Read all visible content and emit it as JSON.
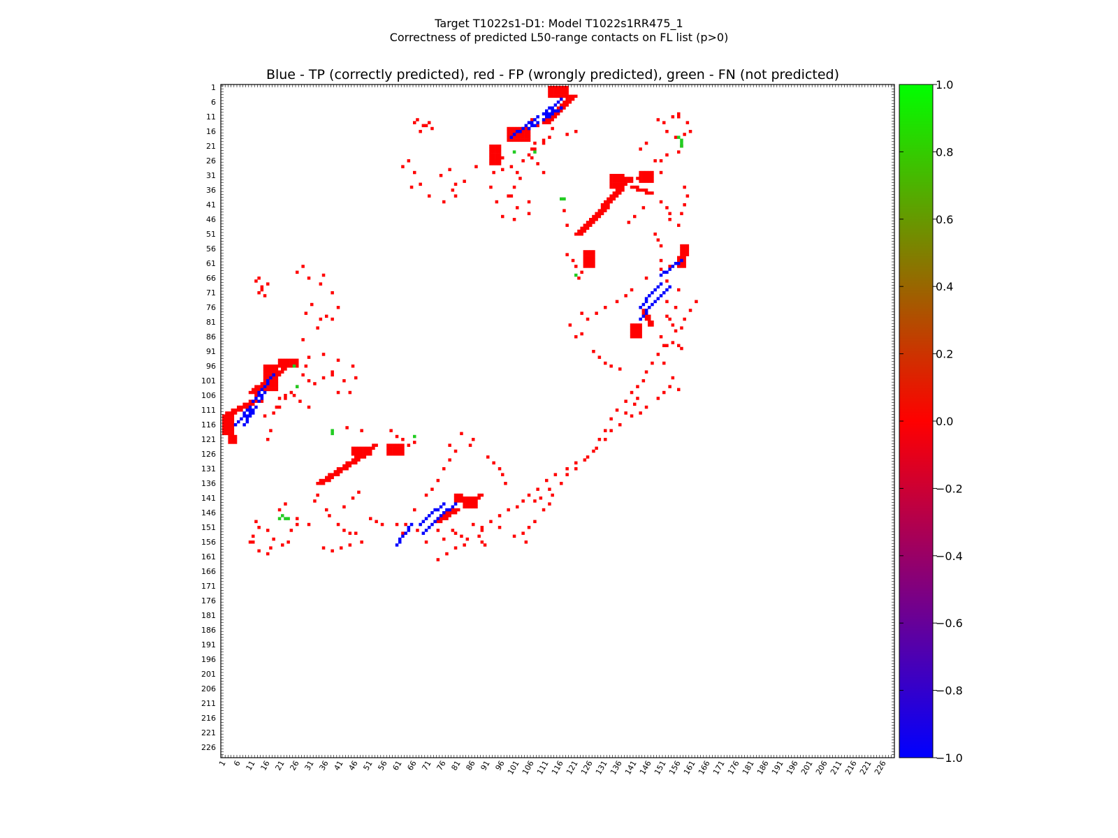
{
  "title_line1": "Target T1022s1-D1: Model T1022s1RR475_1",
  "title_line2": "Correctness of predicted L50-range contacts on FL list (p>0)",
  "chart_data": {
    "type": "heatmap",
    "subtitle": "Blue - TP (correctly predicted), red - FP (wrongly predicted), green - FN (not predicted)",
    "range": [
      1,
      229
    ],
    "tick_labels": [
      "1",
      "6",
      "11",
      "16",
      "21",
      "26",
      "31",
      "36",
      "41",
      "46",
      "51",
      "56",
      "61",
      "66",
      "71",
      "76",
      "81",
      "86",
      "91",
      "96",
      "101",
      "106",
      "111",
      "116",
      "121",
      "126",
      "131",
      "136",
      "141",
      "146",
      "151",
      "156",
      "161",
      "166",
      "171",
      "176",
      "181",
      "186",
      "191",
      "196",
      "201",
      "206",
      "211",
      "216",
      "221",
      "226"
    ],
    "colorbar": {
      "min": -1.0,
      "max": 1.0,
      "tick_labels": [
        "1.0",
        "0.8",
        "0.6",
        "0.4",
        "0.2",
        "0.0",
        "−0.2",
        "−0.4",
        "−0.6",
        "−0.8",
        "−1.0"
      ],
      "colors": [
        "#0000ff",
        "#ff0000",
        "#00ff00"
      ]
    },
    "legend": {
      "tp_color": "#0000ff",
      "fp_color": "#ff0000",
      "fn_color": "#22cc22"
    },
    "tp_segments": [
      [
        5,
        116,
        10,
        110
      ],
      [
        11,
        108,
        18,
        99
      ],
      [
        75,
        147,
        69,
        153
      ],
      [
        80,
        143,
        76,
        146
      ],
      [
        105,
        15,
        108,
        13
      ],
      [
        110,
        12,
        116,
        8
      ],
      [
        150,
        65,
        157,
        60
      ],
      [
        145,
        73,
        150,
        68
      ],
      [
        143,
        76,
        145,
        74
      ],
      [
        111,
        10,
        113,
        9
      ]
    ],
    "fp_bands": [
      [
        1,
        113,
        10,
        108,
        3
      ],
      [
        10,
        105,
        19,
        98,
        3
      ],
      [
        20,
        98,
        25,
        94,
        2
      ],
      [
        33,
        136,
        48,
        126,
        3
      ],
      [
        49,
        125,
        52,
        123,
        2
      ],
      [
        73,
        149,
        79,
        145,
        3
      ],
      [
        85,
        142,
        88,
        140,
        2
      ],
      [
        121,
        51,
        126,
        46,
        3
      ],
      [
        127,
        45,
        138,
        32,
        3
      ],
      [
        110,
        13,
        119,
        4,
        3
      ],
      [
        156,
        62,
        157,
        55,
        3
      ],
      [
        140,
        35,
        146,
        37,
        2
      ],
      [
        144,
        77,
        146,
        82,
        2
      ]
    ],
    "fp_blocks": [
      [
        1,
        113,
        4,
        119
      ],
      [
        3,
        120,
        5,
        122
      ],
      [
        15,
        96,
        19,
        104
      ],
      [
        20,
        94,
        26,
        96
      ],
      [
        45,
        124,
        51,
        126
      ],
      [
        57,
        123,
        62,
        126
      ],
      [
        80,
        140,
        82,
        142
      ],
      [
        83,
        141,
        87,
        144
      ],
      [
        98,
        15,
        105,
        19
      ],
      [
        112,
        1,
        118,
        4
      ],
      [
        92,
        21,
        95,
        27
      ],
      [
        133,
        31,
        137,
        35
      ],
      [
        143,
        30,
        147,
        33
      ],
      [
        124,
        57,
        127,
        62
      ],
      [
        140,
        82,
        143,
        86
      ]
    ],
    "fp_scatter": [
      [
        12,
        67
      ],
      [
        13,
        66
      ],
      [
        14,
        69
      ],
      [
        16,
        68
      ],
      [
        15,
        72
      ],
      [
        14,
        70
      ],
      [
        13,
        71
      ],
      [
        25,
        96
      ],
      [
        30,
        93
      ],
      [
        40,
        94
      ],
      [
        45,
        96
      ],
      [
        46,
        100
      ],
      [
        38,
        99
      ],
      [
        32,
        102
      ],
      [
        44,
        105
      ],
      [
        40,
        105
      ],
      [
        42,
        101
      ],
      [
        28,
        87
      ],
      [
        33,
        83
      ],
      [
        31,
        75
      ],
      [
        29,
        78
      ],
      [
        36,
        79
      ],
      [
        34,
        80
      ],
      [
        38,
        80
      ],
      [
        40,
        76
      ],
      [
        38,
        71
      ],
      [
        35,
        65
      ],
      [
        34,
        68
      ],
      [
        30,
        66
      ],
      [
        26,
        64
      ],
      [
        28,
        62
      ],
      [
        48,
        118
      ],
      [
        43,
        117
      ],
      [
        58,
        118
      ],
      [
        60,
        120
      ],
      [
        62,
        121
      ],
      [
        64,
        123
      ],
      [
        66,
        122
      ],
      [
        37,
        147
      ],
      [
        36,
        145
      ],
      [
        33,
        140
      ],
      [
        33,
        136
      ],
      [
        32,
        142
      ],
      [
        12,
        149
      ],
      [
        13,
        151
      ],
      [
        16,
        152
      ],
      [
        18,
        155
      ],
      [
        11,
        154
      ],
      [
        10,
        156
      ],
      [
        20,
        145
      ],
      [
        22,
        143
      ],
      [
        26,
        148
      ],
      [
        30,
        150
      ],
      [
        42,
        144
      ],
      [
        45,
        141
      ],
      [
        47,
        139
      ],
      [
        51,
        148
      ],
      [
        53,
        149
      ],
      [
        55,
        150
      ],
      [
        60,
        150
      ],
      [
        62,
        153
      ],
      [
        63,
        150
      ],
      [
        66,
        145
      ],
      [
        70,
        140
      ],
      [
        72,
        138
      ],
      [
        74,
        135
      ],
      [
        76,
        131
      ],
      [
        78,
        128
      ],
      [
        80,
        125
      ],
      [
        78,
        123
      ],
      [
        82,
        119
      ],
      [
        86,
        121
      ],
      [
        91,
        127
      ],
      [
        93,
        129
      ],
      [
        95,
        131
      ],
      [
        96,
        133
      ],
      [
        97,
        136
      ],
      [
        85,
        123
      ],
      [
        92,
        149
      ],
      [
        95,
        151
      ],
      [
        88,
        154
      ],
      [
        89,
        156
      ],
      [
        90,
        157
      ],
      [
        100,
        154
      ],
      [
        103,
        153
      ],
      [
        105,
        151
      ],
      [
        107,
        149
      ],
      [
        110,
        145
      ],
      [
        112,
        143
      ],
      [
        113,
        140
      ],
      [
        26,
        150
      ],
      [
        24,
        152
      ],
      [
        23,
        156
      ],
      [
        21,
        157
      ],
      [
        35,
        158
      ],
      [
        38,
        159
      ],
      [
        41,
        158
      ],
      [
        44,
        157
      ],
      [
        40,
        150
      ],
      [
        42,
        152
      ],
      [
        44,
        153
      ],
      [
        46,
        153
      ],
      [
        48,
        156
      ],
      [
        11,
        156
      ],
      [
        13,
        159
      ],
      [
        16,
        160
      ],
      [
        17,
        158
      ],
      [
        19,
        110
      ],
      [
        14,
        108
      ],
      [
        12,
        106
      ],
      [
        15,
        104
      ],
      [
        16,
        104
      ],
      [
        20,
        107
      ],
      [
        22,
        106
      ],
      [
        25,
        106
      ],
      [
        27,
        108
      ],
      [
        30,
        110
      ],
      [
        100,
        35
      ],
      [
        98,
        38
      ],
      [
        92,
        35
      ],
      [
        96,
        29
      ],
      [
        99,
        28
      ],
      [
        101,
        30
      ],
      [
        103,
        26
      ],
      [
        105,
        24
      ],
      [
        107,
        22
      ],
      [
        110,
        20
      ],
      [
        112,
        18
      ],
      [
        121,
        16
      ],
      [
        118,
        17
      ],
      [
        113,
        15
      ],
      [
        107,
        22
      ],
      [
        86,
        150
      ],
      [
        89,
        151
      ],
      [
        71,
        151
      ],
      [
        74,
        152
      ],
      [
        76,
        155
      ],
      [
        79,
        152
      ],
      [
        80,
        153
      ],
      [
        82,
        154
      ],
      [
        84,
        155
      ],
      [
        83,
        157
      ],
      [
        104,
        156
      ],
      [
        107,
        142
      ],
      [
        109,
        141
      ],
      [
        112,
        138
      ],
      [
        116,
        136
      ],
      [
        118,
        133
      ],
      [
        121,
        131
      ],
      [
        124,
        128
      ],
      [
        127,
        125
      ],
      [
        128,
        124
      ],
      [
        129,
        121
      ],
      [
        131,
        118
      ],
      [
        133,
        114
      ],
      [
        135,
        111
      ],
      [
        138,
        108
      ],
      [
        140,
        105
      ],
      [
        142,
        103
      ],
      [
        144,
        101
      ],
      [
        145,
        98
      ],
      [
        147,
        95
      ],
      [
        149,
        92
      ],
      [
        152,
        89
      ],
      [
        155,
        84
      ],
      [
        158,
        80
      ],
      [
        160,
        77
      ],
      [
        162,
        74
      ],
      [
        156,
        70
      ],
      [
        152,
        67
      ]
    ],
    "fn_cells": [
      [
        21,
        147
      ],
      [
        20,
        148
      ],
      [
        22,
        148
      ],
      [
        23,
        148
      ],
      [
        116,
        39
      ],
      [
        117,
        39
      ],
      [
        121,
        65
      ],
      [
        156,
        18
      ],
      [
        157,
        19
      ],
      [
        157,
        20
      ],
      [
        157,
        21
      ],
      [
        38,
        119
      ],
      [
        38,
        118
      ],
      [
        66,
        120
      ],
      [
        100,
        23
      ],
      [
        107,
        23
      ],
      [
        25,
        96
      ],
      [
        26,
        103
      ]
    ]
  }
}
